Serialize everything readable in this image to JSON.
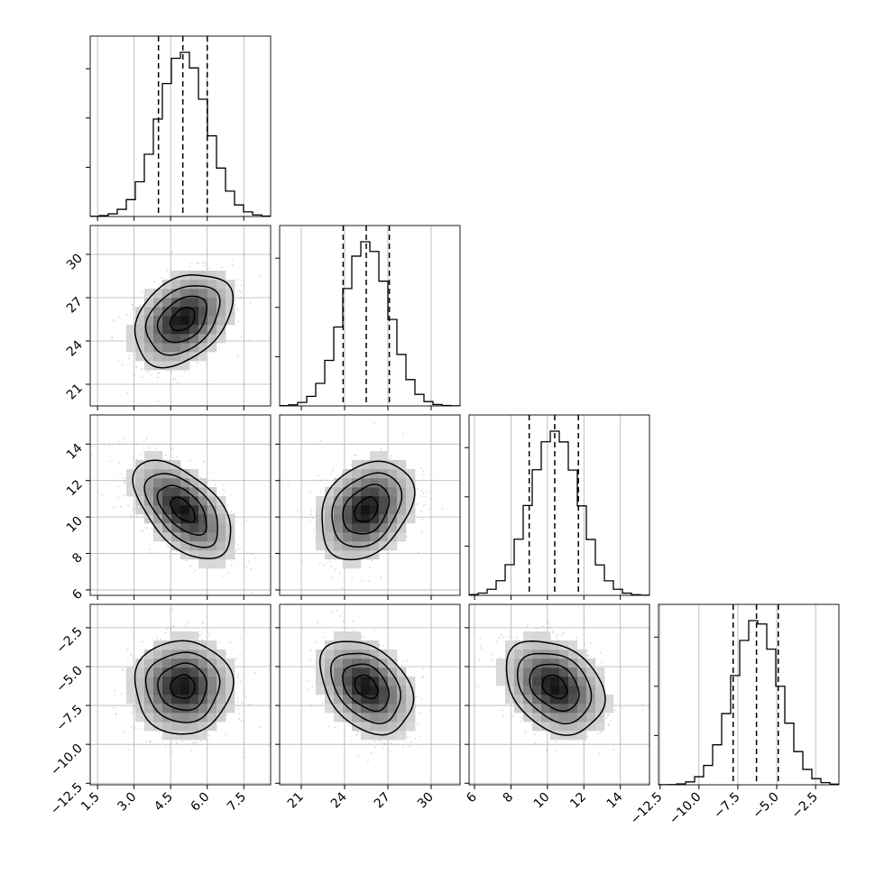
{
  "chart_data": {
    "type": "corner",
    "params": [
      {
        "mean": 5.0,
        "sd": 1.0,
        "lim": [
          1.2,
          8.6
        ],
        "ticks": [
          1.5,
          3.0,
          4.5,
          6.0,
          7.5
        ],
        "tick_labels": [
          "1.5",
          "3.0",
          "4.5",
          "6.0",
          "7.5"
        ],
        "quantiles": [
          4.0,
          5.0,
          6.0
        ]
      },
      {
        "mean": 25.5,
        "sd": 1.6,
        "lim": [
          19.5,
          32.0
        ],
        "ticks": [
          21,
          24,
          27,
          30
        ],
        "tick_labels": [
          "21",
          "24",
          "27",
          "30"
        ],
        "quantiles": [
          23.9,
          25.5,
          27.1
        ]
      },
      {
        "mean": 10.4,
        "sd": 1.35,
        "lim": [
          5.7,
          15.6
        ],
        "ticks": [
          6,
          8,
          10,
          12,
          14
        ],
        "tick_labels": [
          "6",
          "8",
          "10",
          "12",
          "14"
        ],
        "quantiles": [
          9.0,
          10.4,
          11.7
        ]
      },
      {
        "mean": -6.3,
        "sd": 1.5,
        "lim": [
          -12.6,
          -1.0
        ],
        "ticks": [
          -12.5,
          -10.0,
          -7.5,
          -5.0,
          -2.5
        ],
        "tick_labels": [
          "−12.5",
          "−10.0",
          "−7.5",
          "−5.0",
          "−2.5"
        ],
        "quantiles": [
          -7.8,
          -6.3,
          -4.9
        ]
      }
    ],
    "correlations": [
      [
        1,
        0.35,
        -0.55,
        0.0
      ],
      [
        0.35,
        1,
        0.3,
        -0.35
      ],
      [
        -0.55,
        0.3,
        1,
        -0.3
      ],
      [
        0.0,
        -0.35,
        -0.3,
        1
      ]
    ],
    "contour_levels": [
      0.5,
      1.0,
      1.5,
      2.0
    ],
    "grid": true,
    "title": "",
    "xlabel": "",
    "ylabel": ""
  }
}
